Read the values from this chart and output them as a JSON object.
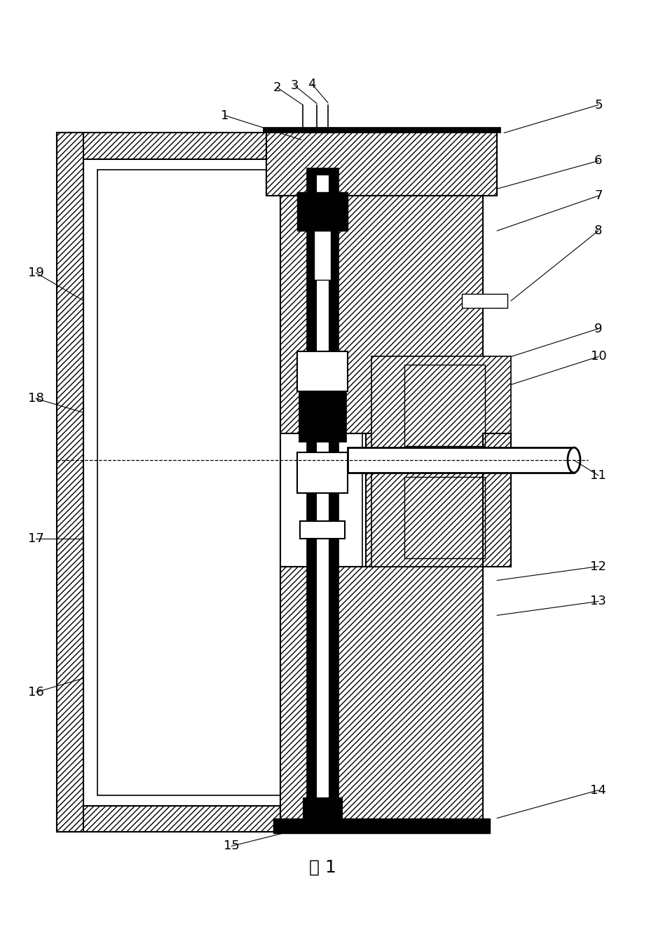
{
  "title": "图 1",
  "fig_width": 9.26,
  "fig_height": 13.36,
  "bg_color": "#ffffff",
  "line_color": "#000000"
}
